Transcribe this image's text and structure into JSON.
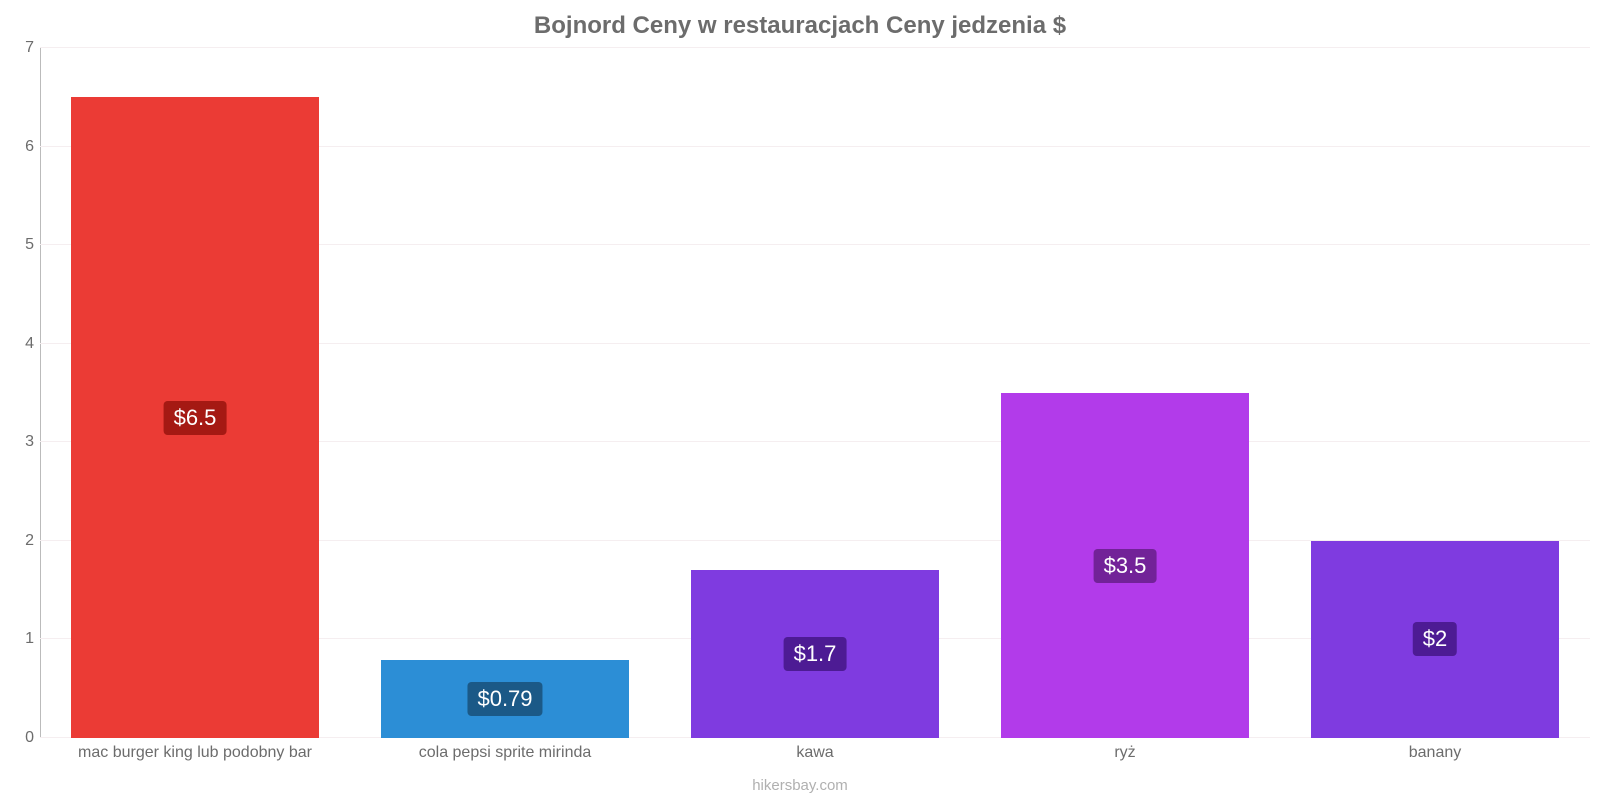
{
  "chart": {
    "type": "bar",
    "title": "Bojnord Ceny w restauracjach Ceny jedzenia $",
    "title_color": "#6c6c6c",
    "title_fontsize": 24,
    "title_fontweight": "bold",
    "source": "hikersbay.com",
    "source_color": "#b0b0b0",
    "source_fontsize": 15,
    "background_color": "#ffffff",
    "ylim_min": 0,
    "ylim_max": 7,
    "ytick_step": 1,
    "yticks": [
      0,
      1,
      2,
      3,
      4,
      5,
      6,
      7
    ],
    "ytick_color": "#6c6c6c",
    "ytick_fontsize": 16,
    "grid_color": "#f5eef0",
    "axis_line_color": "#bbbbbb",
    "xlabel_color": "#6c6c6c",
    "xlabel_fontsize": 16,
    "bar_width_pct": 16,
    "bar_gap_pct": 4,
    "value_label_fontsize": 22,
    "value_label_text_color": "#ffffff",
    "categories": [
      "mac burger king lub podobny bar",
      "cola pepsi sprite mirinda",
      "kawa",
      "ryż",
      "banany"
    ],
    "values": [
      6.5,
      0.79,
      1.7,
      3.5,
      2
    ],
    "value_labels": [
      "$6.5",
      "$0.79",
      "$1.7",
      "$3.5",
      "$2"
    ],
    "bar_colors": [
      "#eb3b35",
      "#2c8ed6",
      "#7f3be0",
      "#b23bea",
      "#7f3be0"
    ],
    "value_label_backgrounds": [
      "#a51913",
      "#1b5987",
      "#4d1b94",
      "#722298",
      "#4d1b94"
    ]
  }
}
